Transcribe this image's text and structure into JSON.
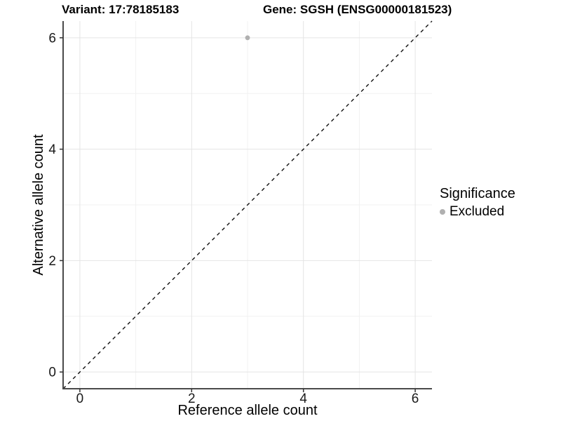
{
  "figure": {
    "background": "#FFFFFF"
  },
  "chart_data": {
    "type": "scatter",
    "title_left": "Variant: 17:78185183",
    "title_right": "Gene: SGSH (ENSG00000181523)",
    "xlabel": "Reference allele count",
    "ylabel": "Alternative allele count",
    "xlim": [
      -0.3,
      6.3
    ],
    "ylim": [
      -0.3,
      6.3
    ],
    "x_ticks": [
      0,
      2,
      4,
      6
    ],
    "y_ticks": [
      0,
      2,
      4,
      6
    ],
    "x_minor_ticks": [
      1,
      3,
      5
    ],
    "y_minor_ticks": [
      1,
      3,
      5
    ],
    "grid": "major and minor gridlines on white panel",
    "series": [
      {
        "name": "Excluded",
        "color": "#B0B0B0",
        "points": [
          {
            "x": 3,
            "y": 6
          }
        ]
      }
    ],
    "reference_line": {
      "kind": "identity",
      "slope": 1,
      "intercept": 0,
      "linestyle": "dashed",
      "color": "#111111"
    },
    "legend": {
      "position": "right",
      "title": "Significance",
      "items": [
        {
          "label": "Excluded",
          "color": "#B0B0B0",
          "marker": "circle"
        }
      ]
    },
    "styles": {
      "grid_major_color": "#E4E4E4",
      "grid_minor_color": "#F1F1F1",
      "axis_line_color": "#4A4A4A",
      "tick_color": "#333333",
      "tick_label_color": "#1A1A1A",
      "point_radius": 3.4
    }
  }
}
